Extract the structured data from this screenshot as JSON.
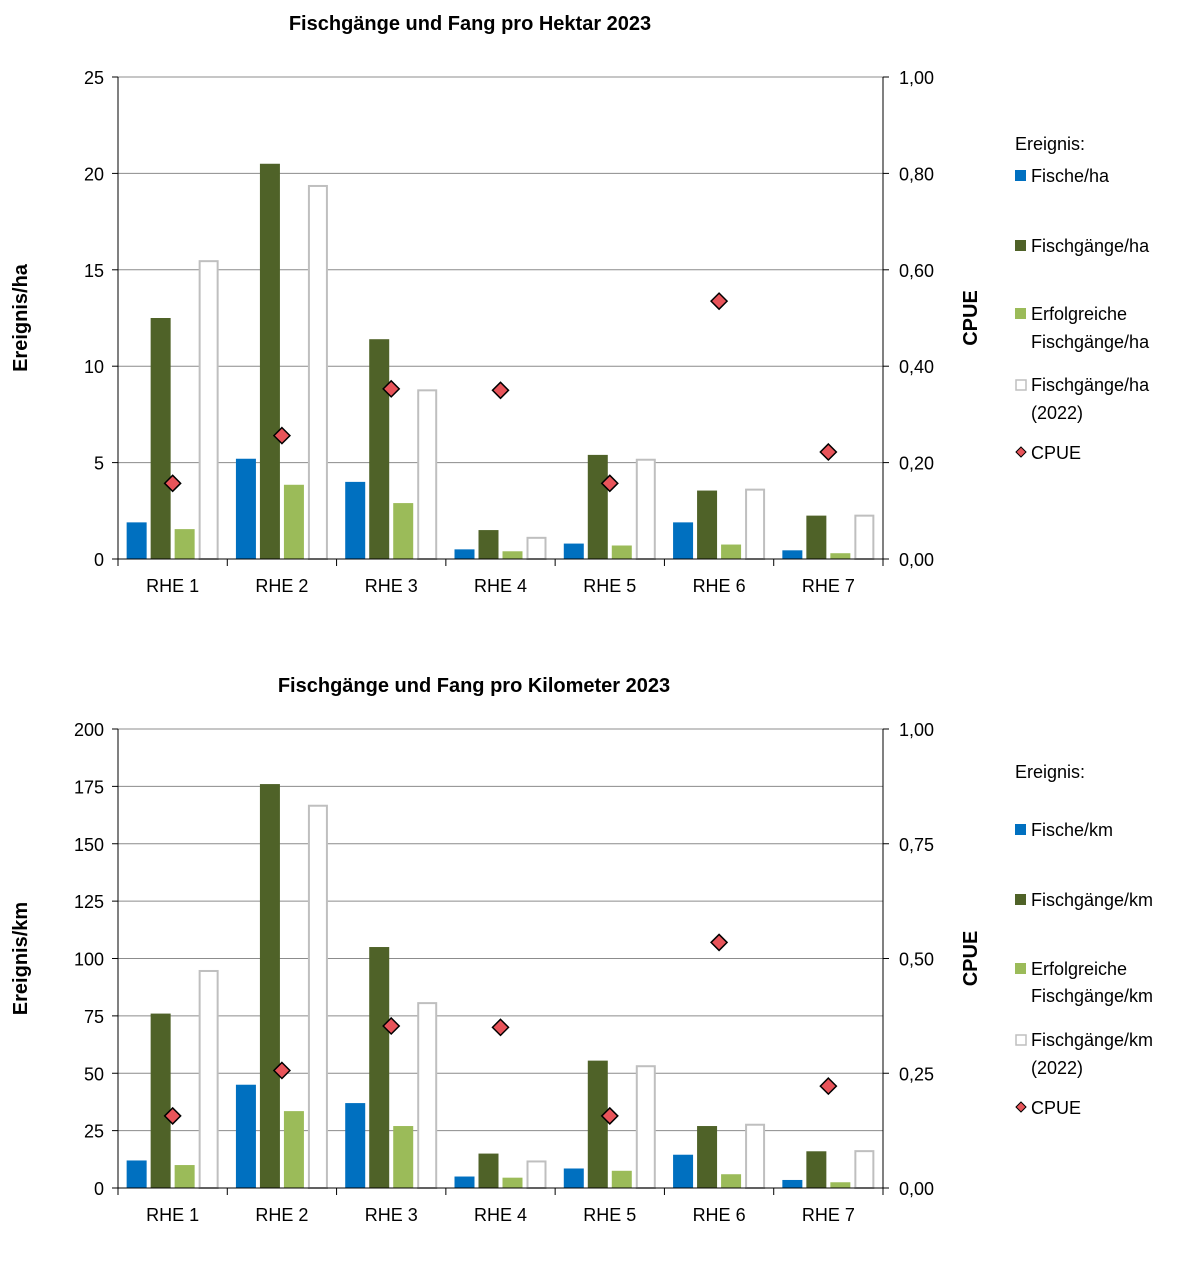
{
  "chart_data": [
    {
      "type": "bar",
      "title": "Fischgänge und Fang pro Hektar 2023",
      "ylabel": "Ereignis/ha",
      "y2label": "CPUE",
      "ylim": [
        0,
        25
      ],
      "y2lim": [
        0,
        1
      ],
      "yticks": [
        "0",
        "5",
        "10",
        "15",
        "20",
        "25"
      ],
      "y2ticks": [
        "0,00",
        "0,20",
        "0,40",
        "0,60",
        "0,80",
        "1,00"
      ],
      "categories": [
        "RHE 1",
        "RHE 2",
        "RHE 3",
        "RHE 4",
        "RHE 5",
        "RHE 6",
        "RHE 7"
      ],
      "grid": true,
      "legend_title": "Ereignis:",
      "legend_position": "right",
      "series": [
        {
          "name": "Fische/ha",
          "values": [
            1.9,
            5.2,
            4.0,
            0.5,
            0.8,
            1.9,
            0.45
          ],
          "color": "#0070C0",
          "style": "bar"
        },
        {
          "name": "Fischgänge/ha",
          "values": [
            12.5,
            20.5,
            11.4,
            1.5,
            5.4,
            3.55,
            2.25
          ],
          "color": "#4F6228",
          "style": "bar"
        },
        {
          "name": "Erfolgreiche Fischgänge/ha",
          "values": [
            1.55,
            3.85,
            2.9,
            0.4,
            0.7,
            0.75,
            0.3
          ],
          "color": "#9BBB59",
          "style": "bar"
        },
        {
          "name": "Fischgänge/ha (2022)",
          "values": [
            15.5,
            19.4,
            8.8,
            1.15,
            5.2,
            3.65,
            2.3
          ],
          "color": "#BFBFBF",
          "style": "hollow-bar"
        },
        {
          "name": "CPUE",
          "values": [
            0.157,
            0.256,
            0.353,
            0.35,
            0.157,
            0.535,
            0.222
          ],
          "color": "#E8545A",
          "style": "diamond",
          "axis": "right"
        }
      ]
    },
    {
      "type": "bar",
      "title": "Fischgänge und Fang pro Kilometer 2023",
      "ylabel": "Ereignis/km",
      "y2label": "CPUE",
      "ylim": [
        0,
        200
      ],
      "y2lim": [
        0,
        1
      ],
      "yticks": [
        "0",
        "25",
        "50",
        "75",
        "100",
        "125",
        "150",
        "175",
        "200"
      ],
      "y2ticks": [
        "0,00",
        "0,25",
        "0,50",
        "0,75",
        "1,00"
      ],
      "categories": [
        "RHE 1",
        "RHE 2",
        "RHE 3",
        "RHE 4",
        "RHE 5",
        "RHE 6",
        "RHE 7"
      ],
      "grid": true,
      "legend_title": "Ereignis:",
      "legend_position": "right",
      "series": [
        {
          "name": "Fische/km",
          "values": [
            12,
            45,
            37,
            5,
            8.5,
            14.5,
            3.5
          ],
          "color": "#0070C0",
          "style": "bar"
        },
        {
          "name": "Fischgänge/km",
          "values": [
            76,
            176,
            105,
            15,
            55.5,
            27,
            16
          ],
          "color": "#4F6228",
          "style": "bar"
        },
        {
          "name": "Erfolgreiche Fischgänge/km",
          "values": [
            10,
            33.5,
            27,
            4.5,
            7.5,
            6,
            2.5
          ],
          "color": "#9BBB59",
          "style": "bar"
        },
        {
          "name": "Fischgänge/km (2022)",
          "values": [
            95,
            167,
            81,
            12,
            53.5,
            28,
            16.5
          ],
          "color": "#BFBFBF",
          "style": "hollow-bar"
        },
        {
          "name": "CPUE",
          "values": [
            0.157,
            0.256,
            0.353,
            0.35,
            0.157,
            0.535,
            0.222
          ],
          "color": "#E8545A",
          "style": "diamond",
          "axis": "right"
        }
      ]
    }
  ]
}
